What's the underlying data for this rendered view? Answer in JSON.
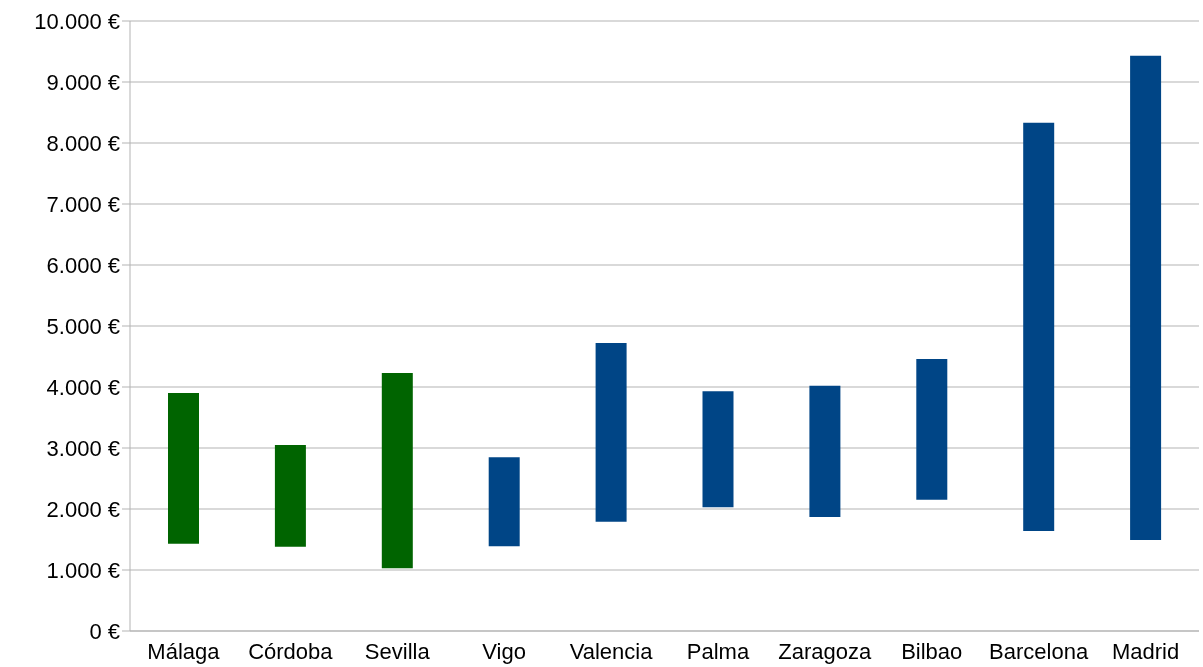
{
  "chart_data": {
    "type": "bar",
    "categories": [
      "Málaga",
      "Córdoba",
      "Sevilla",
      "Vigo",
      "Valencia",
      "Palma",
      "Zaragoza",
      "Bilbao",
      "Barcelona",
      "Madrid"
    ],
    "base": [
      1430,
      1380,
      1030,
      1390,
      1790,
      2030,
      1870,
      2150,
      1640,
      1490
    ],
    "values": [
      2470,
      1670,
      3200,
      1460,
      2930,
      1900,
      2150,
      2310,
      6690,
      7940
    ],
    "colors": [
      "#006400",
      "#006400",
      "#006400",
      "#004586",
      "#004586",
      "#004586",
      "#004586",
      "#004586",
      "#004586",
      "#004586"
    ],
    "ylim": [
      0,
      10000
    ],
    "yticks": [
      {
        "value": 0,
        "label": "0 €"
      },
      {
        "value": 1000,
        "label": "1.000 €"
      },
      {
        "value": 2000,
        "label": "2.000 €"
      },
      {
        "value": 3000,
        "label": "3.000 €"
      },
      {
        "value": 4000,
        "label": "4.000 €"
      },
      {
        "value": 5000,
        "label": "5.000 €"
      },
      {
        "value": 6000,
        "label": "6.000 €"
      },
      {
        "value": 7000,
        "label": "7.000 €"
      },
      {
        "value": 8000,
        "label": "8.000 €"
      },
      {
        "value": 9000,
        "label": "9.000 €"
      },
      {
        "value": 10000,
        "label": "10.000 €"
      }
    ],
    "grid": "y",
    "legend": false
  }
}
